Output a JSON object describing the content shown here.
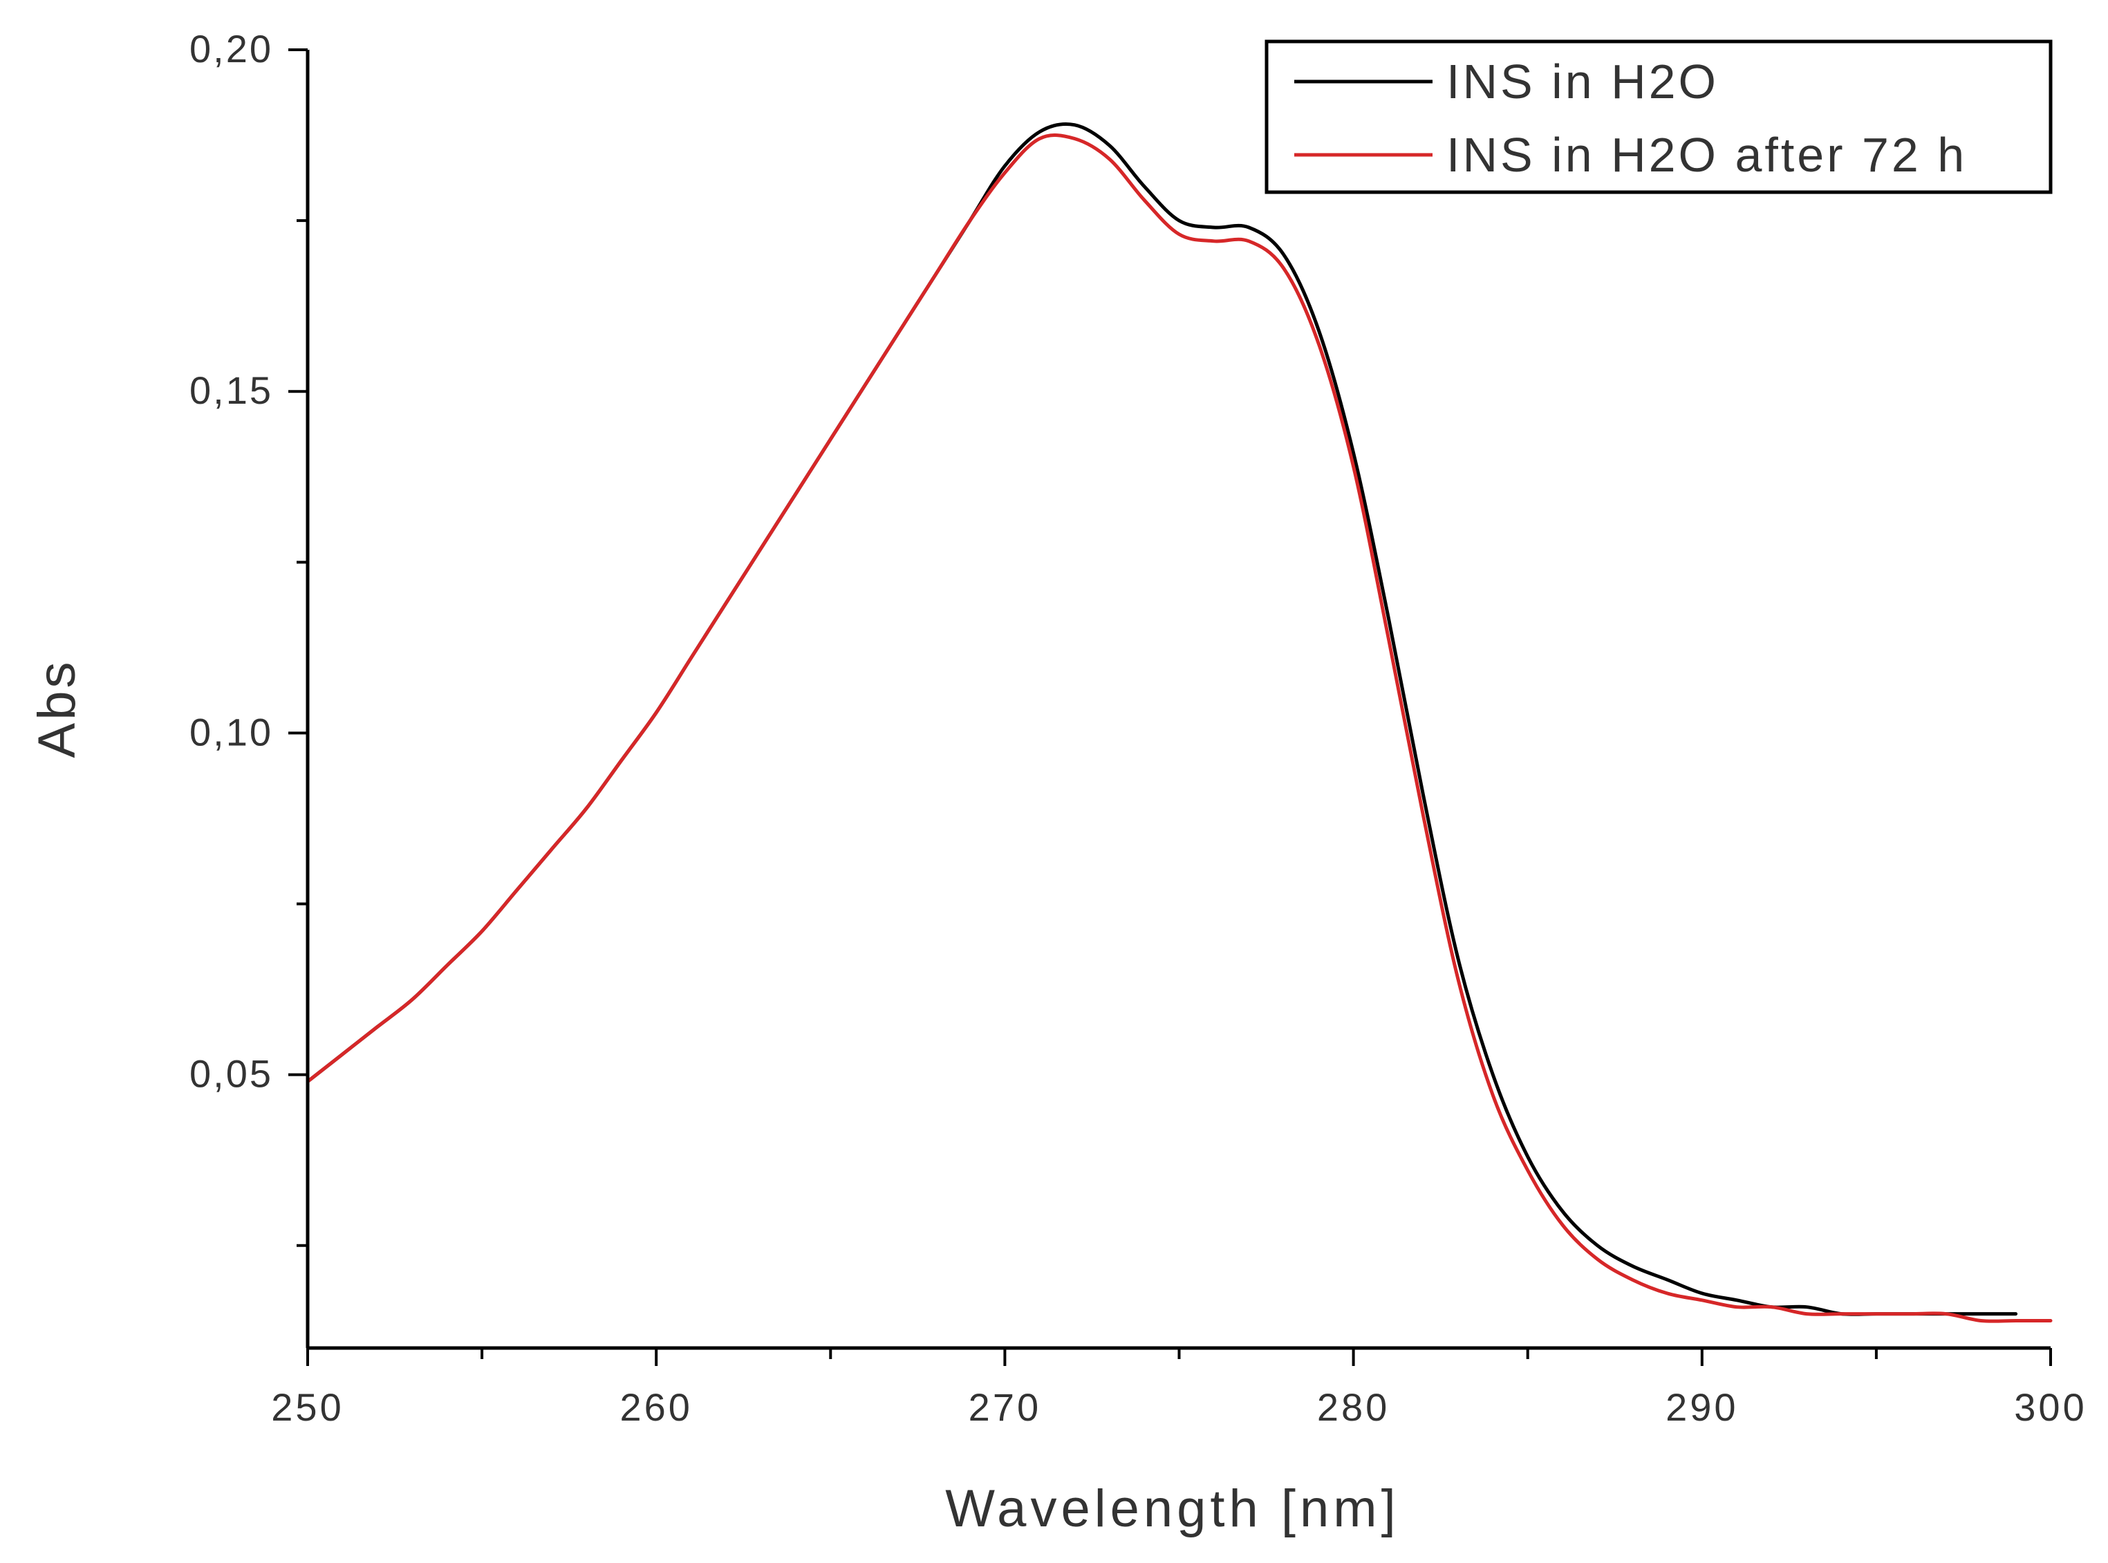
{
  "chart_data": {
    "type": "line",
    "title": "",
    "xlabel": "Wavelength [nm]",
    "ylabel": "Abs",
    "xlim": [
      250,
      300
    ],
    "ylim": [
      0.01,
      0.2
    ],
    "x_ticks": [
      250,
      260,
      270,
      280,
      290,
      300
    ],
    "x_tick_labels": [
      "250",
      "260",
      "270",
      "280",
      "290",
      "300"
    ],
    "x_minor_step": 5,
    "y_ticks": [
      0.05,
      0.1,
      0.15,
      0.2
    ],
    "y_tick_labels": [
      "0,05",
      "0,10",
      "0,15",
      "0,20"
    ],
    "y_minor_step": 0.025,
    "grid": false,
    "legend_position": "top-right",
    "series": [
      {
        "name": "INS in H2O",
        "color": "#000000",
        "x": [
          250,
          251,
          252,
          253,
          254,
          255,
          256,
          257,
          258,
          259,
          260,
          261,
          262,
          263,
          264,
          265,
          266,
          267,
          268,
          269,
          270,
          271,
          272,
          273,
          274,
          275,
          276,
          277,
          278,
          279,
          280,
          281,
          282,
          283,
          284,
          285,
          286,
          287,
          288,
          289,
          290,
          291,
          292,
          293,
          294,
          295,
          296,
          297,
          298,
          299
        ],
        "y": [
          0.049,
          0.053,
          0.057,
          0.061,
          0.066,
          0.071,
          0.077,
          0.083,
          0.089,
          0.096,
          0.103,
          0.111,
          0.119,
          0.127,
          0.135,
          0.143,
          0.151,
          0.159,
          0.167,
          0.175,
          0.183,
          0.188,
          0.189,
          0.186,
          0.18,
          0.175,
          0.174,
          0.174,
          0.17,
          0.159,
          0.141,
          0.117,
          0.091,
          0.067,
          0.05,
          0.038,
          0.03,
          0.025,
          0.022,
          0.02,
          0.018,
          0.017,
          0.016,
          0.016,
          0.015,
          0.015,
          0.015,
          0.015,
          0.015,
          0.015
        ]
      },
      {
        "name": "INS in H2O after 72 h",
        "color": "#d62728",
        "x": [
          250,
          251,
          252,
          253,
          254,
          255,
          256,
          257,
          258,
          259,
          260,
          261,
          262,
          263,
          264,
          265,
          266,
          267,
          268,
          269,
          270,
          271,
          272,
          273,
          274,
          275,
          276,
          277,
          278,
          279,
          280,
          281,
          282,
          283,
          284,
          285,
          286,
          287,
          288,
          289,
          290,
          291,
          292,
          293,
          294,
          295,
          296,
          297,
          298,
          299,
          300
        ],
        "y": [
          0.049,
          0.053,
          0.057,
          0.061,
          0.066,
          0.071,
          0.077,
          0.083,
          0.089,
          0.096,
          0.103,
          0.111,
          0.119,
          0.127,
          0.135,
          0.143,
          0.151,
          0.159,
          0.167,
          0.175,
          0.182,
          0.187,
          0.187,
          0.184,
          0.178,
          0.173,
          0.172,
          0.172,
          0.168,
          0.157,
          0.139,
          0.114,
          0.088,
          0.064,
          0.047,
          0.036,
          0.028,
          0.023,
          0.02,
          0.018,
          0.017,
          0.016,
          0.016,
          0.015,
          0.015,
          0.015,
          0.015,
          0.015,
          0.014,
          0.014,
          0.014
        ]
      }
    ]
  }
}
